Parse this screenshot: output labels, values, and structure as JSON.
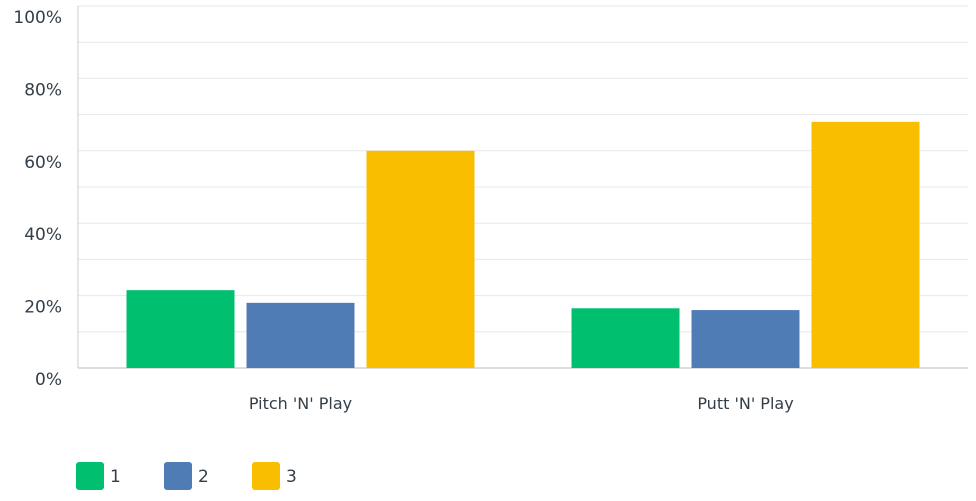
{
  "chart_data": {
    "type": "bar",
    "categories": [
      "Pitch 'N' Play",
      "Putt 'N' Play"
    ],
    "series": [
      {
        "name": "1",
        "color": "#00bf6f",
        "values": [
          21.5,
          16.5
        ]
      },
      {
        "name": "2",
        "color": "#507cb6",
        "values": [
          18,
          16
        ]
      },
      {
        "name": "3",
        "color": "#f9be00",
        "values": [
          60,
          68
        ]
      }
    ],
    "ylim": [
      0,
      100
    ],
    "yticks": [
      "0%",
      "20%",
      "40%",
      "60%",
      "80%",
      "100%"
    ],
    "ytick_values": [
      0,
      20,
      40,
      60,
      80,
      100
    ],
    "minor_gridlines": [
      10,
      30,
      50,
      70,
      90
    ],
    "grid": true,
    "legend_position": "bottom-left",
    "title": "",
    "xlabel": "",
    "ylabel": ""
  }
}
